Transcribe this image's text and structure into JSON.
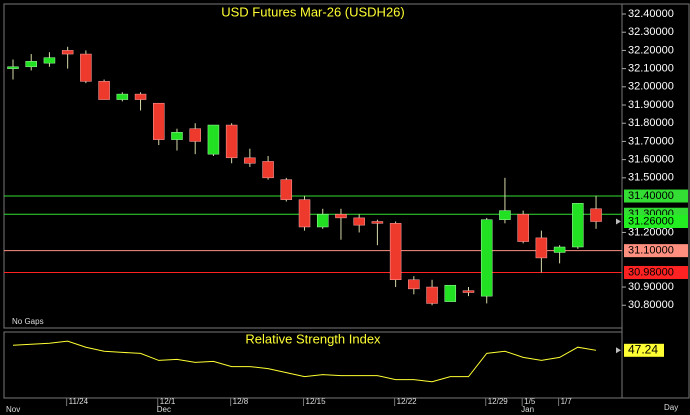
{
  "chart_data": [
    {
      "type": "candlestick",
      "title": "USD Futures Mar-26 (USDH26)",
      "annotation": "No Gaps",
      "x_label": "Day",
      "categories": [
        null,
        null,
        null,
        "11/24",
        null,
        null,
        null,
        null,
        "12/1",
        null,
        null,
        null,
        "12/8",
        null,
        null,
        null,
        "12/15",
        null,
        null,
        null,
        null,
        "12/22",
        null,
        null,
        null,
        null,
        "12/29",
        null,
        "1/5",
        null,
        "1/7",
        null,
        null
      ],
      "months": [
        "Nov",
        null,
        null,
        null,
        null,
        null,
        null,
        null,
        "Dec",
        null,
        null,
        null,
        null,
        null,
        null,
        null,
        null,
        null,
        null,
        null,
        null,
        null,
        null,
        null,
        null,
        null,
        null,
        null,
        "Jan",
        null,
        null,
        null,
        null
      ],
      "open": [
        32.1,
        32.11,
        32.13,
        32.2,
        32.18,
        32.03,
        31.93,
        31.96,
        31.91,
        31.71,
        31.77,
        31.63,
        31.79,
        31.61,
        31.59,
        31.49,
        31.38,
        31.23,
        31.3,
        31.28,
        31.26,
        31.25,
        30.94,
        30.9,
        30.82,
        30.88,
        30.85,
        31.27,
        31.3,
        31.17,
        31.09,
        31.12,
        31.33
      ],
      "high": [
        32.15,
        32.18,
        32.19,
        32.22,
        32.2,
        32.04,
        31.97,
        31.97,
        31.91,
        31.77,
        31.8,
        31.79,
        31.8,
        31.66,
        31.62,
        31.5,
        31.4,
        31.33,
        31.33,
        31.3,
        31.27,
        31.26,
        30.96,
        30.94,
        30.91,
        30.9,
        31.28,
        31.5,
        31.32,
        31.21,
        31.13,
        31.36,
        31.4
      ],
      "low": [
        32.04,
        32.09,
        32.11,
        32.1,
        32.02,
        31.93,
        31.92,
        31.87,
        31.68,
        31.65,
        31.63,
        31.62,
        31.58,
        31.56,
        31.49,
        31.37,
        31.21,
        31.22,
        31.16,
        31.2,
        31.13,
        30.9,
        30.86,
        30.8,
        30.82,
        30.85,
        30.81,
        31.25,
        31.14,
        30.98,
        31.03,
        31.11,
        31.22
      ],
      "close": [
        32.11,
        32.14,
        32.16,
        32.18,
        32.03,
        31.93,
        31.96,
        31.93,
        31.71,
        31.75,
        31.7,
        31.79,
        31.61,
        31.58,
        31.5,
        31.38,
        31.23,
        31.3,
        31.28,
        31.24,
        31.25,
        30.94,
        30.89,
        30.81,
        30.91,
        30.87,
        31.27,
        31.32,
        31.15,
        31.06,
        31.12,
        31.36,
        31.26
      ],
      "up_color": "#22e022",
      "down_color": "#ee3a2c",
      "ylim": [
        30.675,
        32.455
      ],
      "yticks": [
        {
          "value": 32.4,
          "label": "32.40000"
        },
        {
          "value": 32.3,
          "label": "32.30000"
        },
        {
          "value": 32.2,
          "label": "32.20000"
        },
        {
          "value": 32.1,
          "label": "32.10000"
        },
        {
          "value": 32.0,
          "label": "32.00000"
        },
        {
          "value": 31.9,
          "label": "31.90000"
        },
        {
          "value": 31.8,
          "label": "31.80000"
        },
        {
          "value": 31.7,
          "label": "31.70000"
        },
        {
          "value": 31.6,
          "label": "31.60000"
        },
        {
          "value": 31.5,
          "label": "31.50000"
        },
        {
          "value": 31.2,
          "label": "31.20000"
        },
        {
          "value": 30.9,
          "label": "30.90000"
        },
        {
          "value": 30.8,
          "label": "30.80000"
        }
      ],
      "price_lines": [
        {
          "value": 31.4,
          "label": "31.40000",
          "color": "#33dd33"
        },
        {
          "value": 31.3,
          "label": "31.30000",
          "color": "#33dd33"
        },
        {
          "value": 31.1,
          "label": "31.10000",
          "color": "#ff9080"
        },
        {
          "value": 30.98,
          "label": "30.98000",
          "color": "#ff2222"
        }
      ],
      "last_price": {
        "value": 31.26,
        "label": "31.26000",
        "color": "#22ee22"
      }
    },
    {
      "type": "line",
      "title": "Relative Strength Index",
      "color": "#ffff33",
      "values": [
        50.8,
        51.5,
        52.2,
        53.6,
        49.4,
        46.6,
        45.8,
        45.1,
        40.2,
        40.9,
        38.8,
        39.5,
        35.9,
        35.9,
        34.5,
        31.7,
        28.9,
        30.3,
        29.6,
        29.6,
        29.6,
        26.8,
        26.8,
        25.3,
        28.9,
        28.9,
        45.1,
        46.6,
        42.3,
        40.2,
        42.3,
        49.4,
        47.24
      ],
      "ylim": [
        14,
        60
      ]
    }
  ]
}
